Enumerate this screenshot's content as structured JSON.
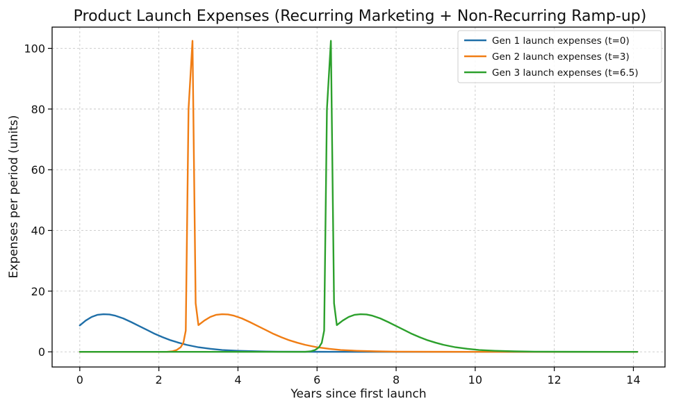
{
  "chart_data": {
    "type": "line",
    "title": "Product Launch Expenses (Recurring Marketing + Non-Recurring Ramp-up)",
    "xlabel": "Years since first launch",
    "ylabel": "Expenses per period (units)",
    "xlim": [
      -0.7,
      14.8
    ],
    "ylim": [
      -5,
      107
    ],
    "xticks": [
      0,
      2,
      4,
      6,
      8,
      10,
      12,
      14
    ],
    "yticks": [
      0,
      20,
      40,
      60,
      80,
      100
    ],
    "grid": true,
    "legend_position": "top-right",
    "series": [
      {
        "name": "Gen 1 launch expenses (t=0)",
        "color": "#1f6fa8",
        "points": [
          [
            0,
            8.7
          ],
          [
            0.15,
            10.3
          ],
          [
            0.3,
            11.5
          ],
          [
            0.45,
            12.2
          ],
          [
            0.6,
            12.4
          ],
          [
            0.75,
            12.3
          ],
          [
            0.9,
            11.9
          ],
          [
            1.1,
            11.0
          ],
          [
            1.3,
            9.8
          ],
          [
            1.5,
            8.5
          ],
          [
            1.7,
            7.2
          ],
          [
            1.9,
            5.9
          ],
          [
            2.1,
            4.8
          ],
          [
            2.3,
            3.8
          ],
          [
            2.5,
            3.0
          ],
          [
            2.7,
            2.3
          ],
          [
            3.0,
            1.5
          ],
          [
            3.3,
            1.0
          ],
          [
            3.6,
            0.6
          ],
          [
            4.0,
            0.35
          ],
          [
            4.5,
            0.15
          ],
          [
            5.0,
            0.06
          ],
          [
            6.0,
            0.01
          ],
          [
            7.0,
            0.0
          ],
          [
            14.1,
            0.0
          ]
        ]
      },
      {
        "name": "Gen 2 launch expenses (t=3)",
        "color": "#f07d14",
        "points": [
          [
            0,
            0
          ],
          [
            2.2,
            0
          ],
          [
            2.35,
            0.2
          ],
          [
            2.45,
            0.6
          ],
          [
            2.55,
            1.5
          ],
          [
            2.62,
            3.0
          ],
          [
            2.68,
            7.0
          ],
          [
            2.75,
            80.0
          ],
          [
            2.85,
            102.5
          ],
          [
            2.93,
            16.0
          ],
          [
            3.0,
            8.8
          ],
          [
            3.15,
            10.3
          ],
          [
            3.3,
            11.5
          ],
          [
            3.45,
            12.2
          ],
          [
            3.6,
            12.4
          ],
          [
            3.75,
            12.3
          ],
          [
            3.9,
            11.9
          ],
          [
            4.1,
            11.0
          ],
          [
            4.3,
            9.8
          ],
          [
            4.5,
            8.5
          ],
          [
            4.7,
            7.2
          ],
          [
            4.9,
            5.9
          ],
          [
            5.1,
            4.8
          ],
          [
            5.3,
            3.8
          ],
          [
            5.5,
            3.0
          ],
          [
            5.7,
            2.3
          ],
          [
            6.0,
            1.5
          ],
          [
            6.3,
            1.0
          ],
          [
            6.6,
            0.6
          ],
          [
            7.0,
            0.35
          ],
          [
            7.5,
            0.15
          ],
          [
            8.0,
            0.06
          ],
          [
            9.0,
            0.01
          ],
          [
            10.0,
            0.0
          ],
          [
            14.1,
            0.0
          ]
        ]
      },
      {
        "name": "Gen 3 launch expenses (t=6.5)",
        "color": "#2ca02c",
        "points": [
          [
            0,
            0
          ],
          [
            5.7,
            0
          ],
          [
            5.85,
            0.2
          ],
          [
            5.95,
            0.6
          ],
          [
            6.05,
            1.5
          ],
          [
            6.12,
            3.0
          ],
          [
            6.18,
            7.0
          ],
          [
            6.25,
            80.0
          ],
          [
            6.35,
            102.5
          ],
          [
            6.43,
            16.0
          ],
          [
            6.5,
            8.8
          ],
          [
            6.65,
            10.3
          ],
          [
            6.8,
            11.5
          ],
          [
            6.95,
            12.2
          ],
          [
            7.1,
            12.4
          ],
          [
            7.25,
            12.3
          ],
          [
            7.4,
            11.9
          ],
          [
            7.6,
            11.0
          ],
          [
            7.8,
            9.8
          ],
          [
            8.0,
            8.5
          ],
          [
            8.2,
            7.2
          ],
          [
            8.4,
            5.9
          ],
          [
            8.6,
            4.8
          ],
          [
            8.8,
            3.8
          ],
          [
            9.0,
            3.0
          ],
          [
            9.2,
            2.3
          ],
          [
            9.5,
            1.5
          ],
          [
            9.8,
            1.0
          ],
          [
            10.1,
            0.6
          ],
          [
            10.5,
            0.35
          ],
          [
            11.0,
            0.15
          ],
          [
            11.5,
            0.06
          ],
          [
            12.5,
            0.01
          ],
          [
            13.5,
            0.0
          ],
          [
            14.1,
            0.0
          ]
        ]
      }
    ]
  }
}
